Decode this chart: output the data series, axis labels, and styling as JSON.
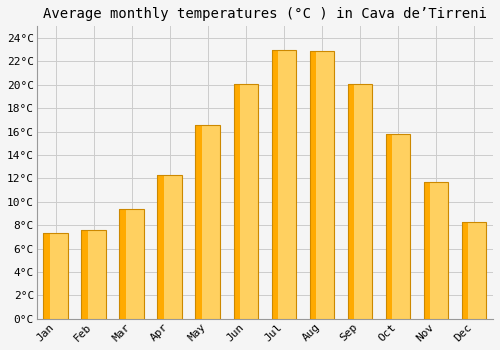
{
  "title": "Average monthly temperatures (°C ) in Cava de’Tirreni",
  "months": [
    "Jan",
    "Feb",
    "Mar",
    "Apr",
    "May",
    "Jun",
    "Jul",
    "Aug",
    "Sep",
    "Oct",
    "Nov",
    "Dec"
  ],
  "temperatures": [
    7.3,
    7.6,
    9.4,
    12.3,
    16.6,
    20.1,
    23.0,
    22.9,
    20.1,
    15.8,
    11.7,
    8.3
  ],
  "bar_color_main": "#FFAA00",
  "bar_color_light": "#FFD060",
  "bar_edge_color": "#CC8800",
  "background_color": "#F5F5F5",
  "plot_bg_color": "#F5F5F5",
  "grid_color": "#CCCCCC",
  "ylim": [
    0,
    25
  ],
  "yticks": [
    0,
    2,
    4,
    6,
    8,
    10,
    12,
    14,
    16,
    18,
    20,
    22,
    24
  ],
  "title_fontsize": 10,
  "tick_fontsize": 8,
  "font_family": "monospace",
  "bar_width": 0.65
}
